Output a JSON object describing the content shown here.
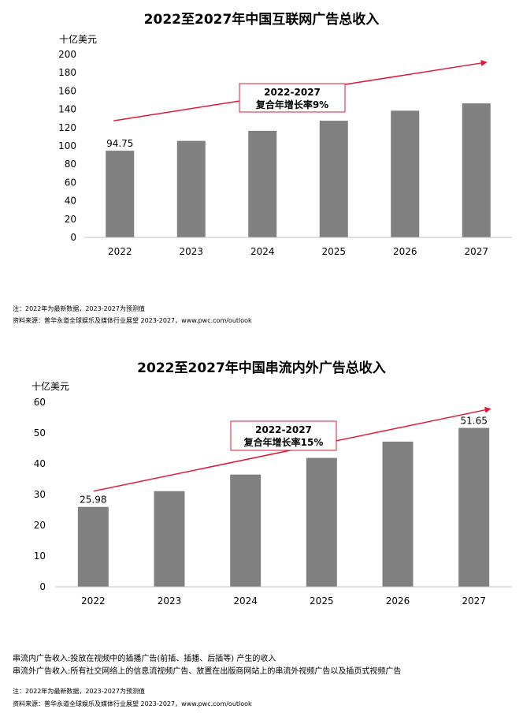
{
  "charts": [
    {
      "title": "2022至2027年中国互联网广告总收入",
      "annotation_line1": "2022-2027",
      "annotation_line2": "复合年增长率9%",
      "note": "注：2022年为最新数据，2023-2027为预测值",
      "source": "资料来源：普华永道全球娱乐及媒体行业展望 2023-2027，www.pwc.com/outlook"
    },
    {
      "title": "2022至2027年中国串流内外广告总收入",
      "annotation_line1": "2022-2027",
      "annotation_line2": "复合年增长率15%",
      "definition_1": "串流内广告收入:投放在视频中的插播广告(前插、插播、后插等) 产生的收入",
      "definition_2": "串流外广告收入:所有社交网络上的信息流视频广告、放置在出版商网站上的串流外视频广告以及插页式视频广告",
      "note": "注：2022年为最新数据，2023-2027为预测值",
      "source": "资料来源：普华永道全球娱乐及媒体行业展望 2023-2027，www.pwc.com/outlook"
    }
  ],
  "chart_data": [
    {
      "type": "bar",
      "title": "2022至2027年中国互联网广告总收入",
      "ylabel": "十亿美元",
      "categories": [
        "2022",
        "2023",
        "2024",
        "2025",
        "2026",
        "2027"
      ],
      "values": [
        94.75,
        105.5,
        116.5,
        127.5,
        138.5,
        146.5
      ],
      "data_labels": [
        "94.75",
        "",
        "",
        "",
        "",
        ""
      ],
      "ylim": [
        0,
        200
      ],
      "yticks": [
        "0",
        "20",
        "40",
        "60",
        "80",
        "100",
        "120",
        "140",
        "160",
        "180",
        "200"
      ],
      "bar_color": "#808080",
      "arrow_color": "#e31837",
      "grid": false,
      "legend": "none"
    },
    {
      "type": "bar",
      "title": "2022至2027年中国串流内外广告总收入",
      "ylabel": "十亿美元",
      "categories": [
        "2022",
        "2023",
        "2024",
        "2025",
        "2026",
        "2027"
      ],
      "values": [
        25.98,
        31.1,
        36.5,
        41.9,
        47.2,
        51.65
      ],
      "data_labels": [
        "25.98",
        "",
        "",
        "",
        "",
        "51.65"
      ],
      "ylim": [
        0,
        60
      ],
      "yticks": [
        "0",
        "10",
        "20",
        "30",
        "40",
        "50",
        "60"
      ],
      "bar_color": "#808080",
      "arrow_color": "#e31837",
      "grid": false,
      "legend": "none"
    }
  ]
}
